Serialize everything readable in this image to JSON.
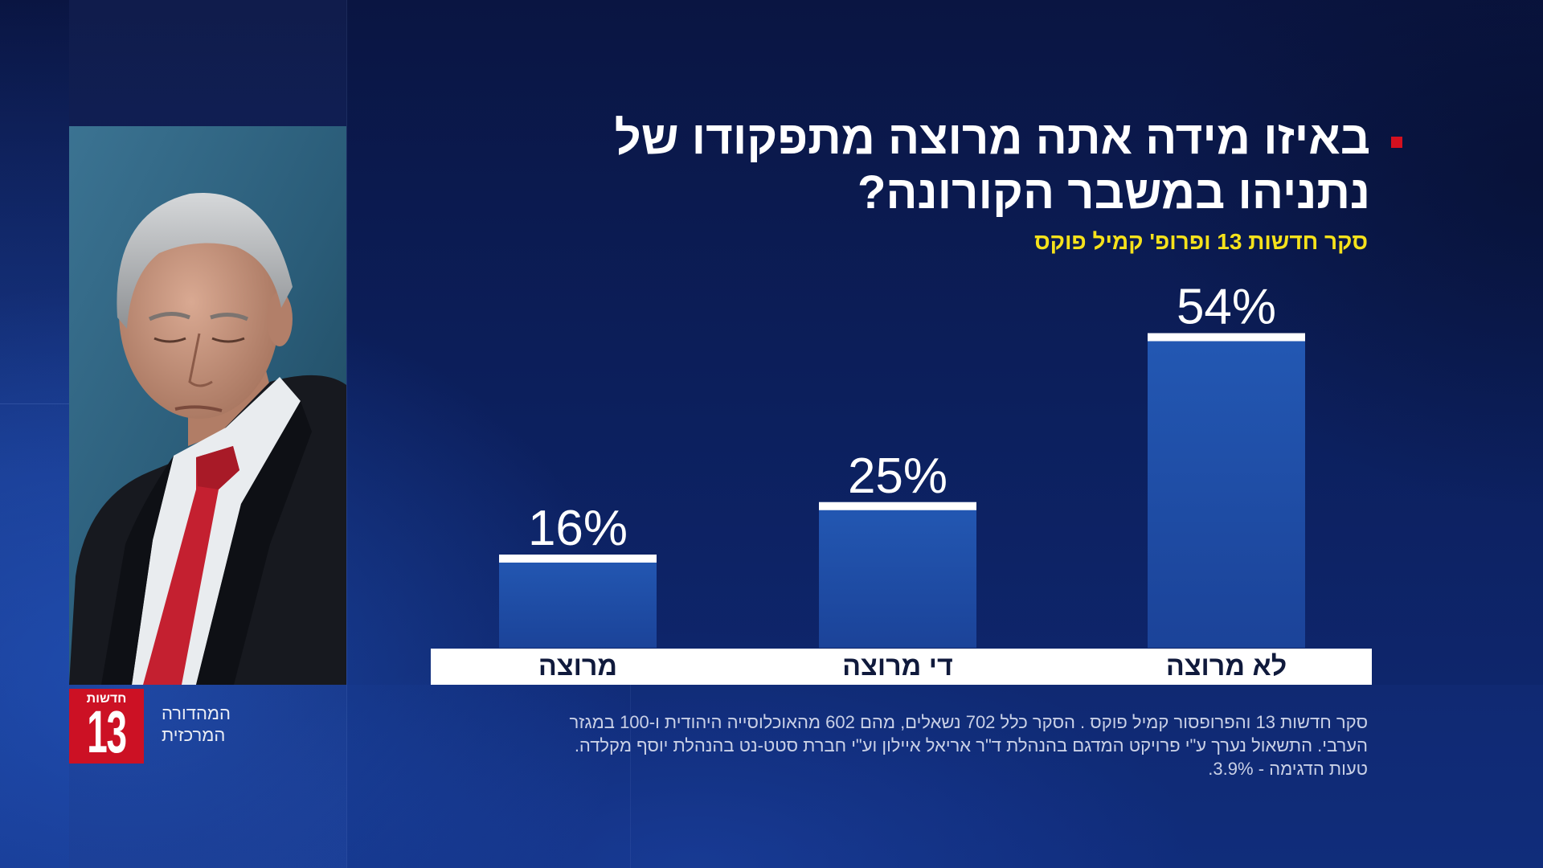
{
  "chart_data": {
    "type": "bar",
    "title_lines": [
      "באיזו מידה אתה מרוצה מתפקודו של",
      "נתניהו במשבר הקורונה?"
    ],
    "subtitle": "סקר חדשות 13 ופרופ' קמיל פוקס",
    "categories": [
      "מרוצה",
      "די מרוצה",
      "לא מרוצה"
    ],
    "values": [
      16,
      25,
      54
    ],
    "value_labels": [
      "16%",
      "25%",
      "54%"
    ],
    "grid": false
  },
  "footnote_lines": [
    "סקר חדשות 13 והפרופסור קמיל פוקס . הסקר כלל 702 נשאלים, מהם 602 מהאוכלוסייה היהודית ו-100 במגזר",
    "הערבי. התשאול נערך ע\"י פרויקט המדגם בהנהלת ד\"ר אריאל איילון וע\"י חברת סטט-נט בהנהלת יוסף מקלדה.",
    "טעות הדגימה - 3.9%."
  ],
  "logo": {
    "caption": "חדשות",
    "number": "13"
  },
  "program": {
    "line1": "המהדורה",
    "line2": "המרכזית"
  },
  "icons": {
    "title_bullet": "red-square-bullet-icon",
    "photo": "person-portrait"
  },
  "colors": {
    "bullet": "#d4101f",
    "subtitle": "#f6e21b",
    "logo_red": "#cc1124",
    "bar_top": "#2358b3",
    "bar_bottom": "#1b4399",
    "bar_cap": "#ffffff",
    "band": "#ffffff",
    "category_text": "#101a3c"
  }
}
